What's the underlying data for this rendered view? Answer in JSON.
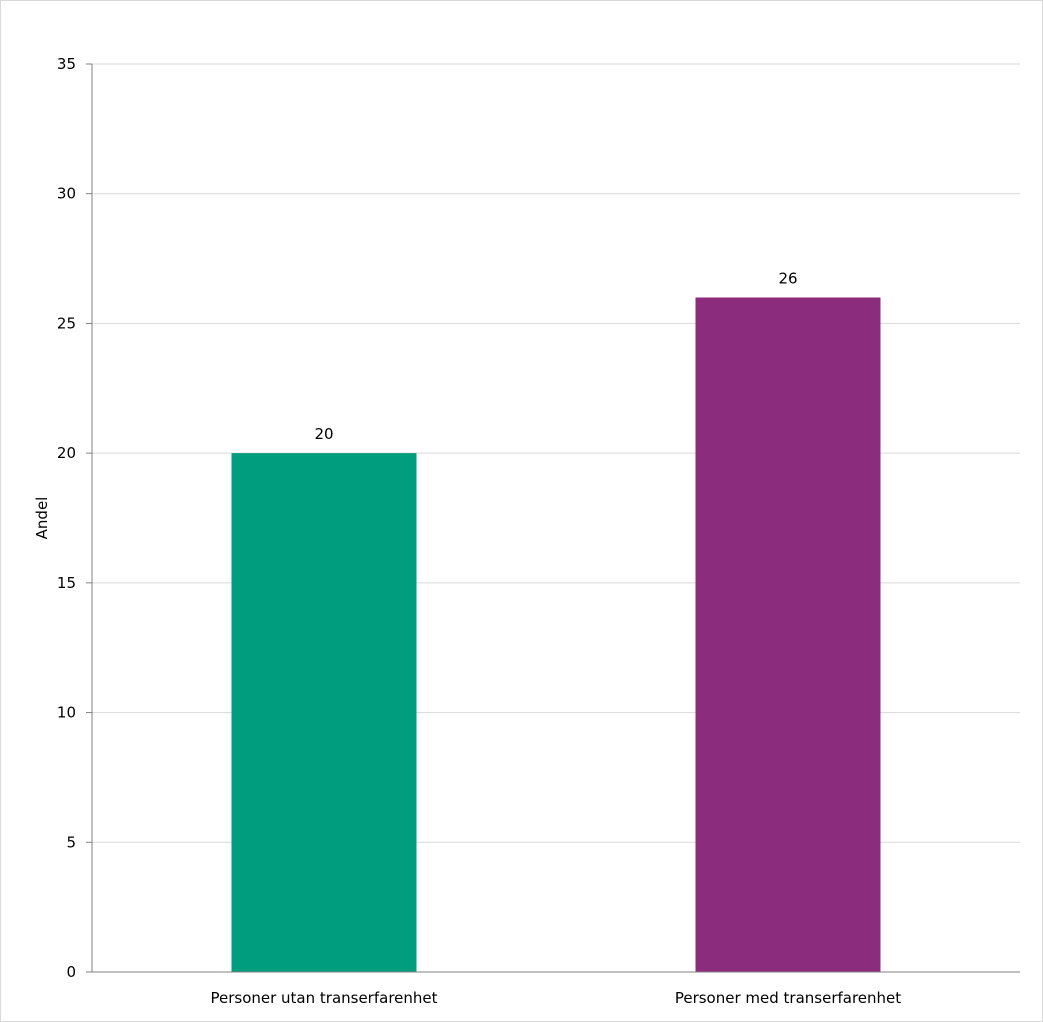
{
  "chart_data": {
    "type": "bar",
    "title": "",
    "xlabel": "",
    "ylabel": "Andel",
    "categories": [
      "Personer utan transerfarenhet",
      "Personer med transerfarenhet"
    ],
    "values": [
      20,
      26
    ],
    "data_labels": [
      "20",
      "26"
    ],
    "colors": [
      "#009e7e",
      "#8b2c7d"
    ],
    "ylim": [
      0,
      35
    ],
    "yticks": [
      0,
      5,
      10,
      15,
      20,
      25,
      30,
      35
    ],
    "grid": true,
    "legend": "none"
  }
}
